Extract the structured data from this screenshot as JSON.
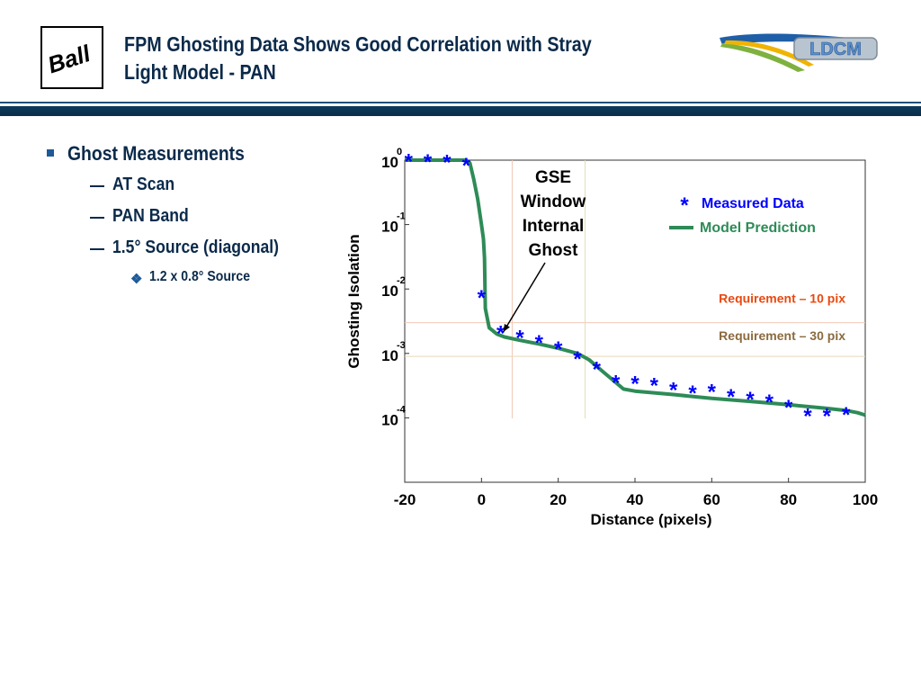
{
  "slide": {
    "title_line1": "FPM Ghosting Data Shows Good Correlation with Stray",
    "title_line2": "Light Model - PAN",
    "left_logo_text": "Ball",
    "right_logo_text": "LDCM",
    "bullets": {
      "l1": "Ghost Measurements",
      "l2": [
        "AT Scan",
        "PAN Band",
        "1.5° Source (diagonal)"
      ],
      "l3": "1.2 x 0.8° Source"
    }
  },
  "colors": {
    "measured": "#0000ff",
    "model": "#2e8b57",
    "req10": "#e8490f",
    "req30": "#8b6a3e",
    "title": "#0b2a4a"
  },
  "chart_data": {
    "type": "line",
    "xlabel": "Distance (pixels)",
    "ylabel": "Ghosting Isolation",
    "xlim": [
      -20,
      100
    ],
    "y_scale": "log",
    "ylim": [
      1e-05,
      1
    ],
    "x_ticks": [
      "-20",
      "0",
      "20",
      "40",
      "60",
      "80",
      "100"
    ],
    "y_ticks": [
      {
        "base": "10",
        "exp": "0",
        "value": 1
      },
      {
        "base": "10",
        "exp": "-1",
        "value": 0.1
      },
      {
        "base": "10",
        "exp": "-2",
        "value": 0.01
      },
      {
        "base": "10",
        "exp": "-3",
        "value": 0.001
      },
      {
        "base": "10",
        "exp": "-4",
        "value": 0.0001
      }
    ],
    "legend": {
      "position": "top-right",
      "measured_label": "Measured Data",
      "model_label": "Model Prediction",
      "measured_marker": "*"
    },
    "series": [
      {
        "name": "Measured Data",
        "kind": "markers",
        "x": [
          -19,
          -14,
          -9,
          -4,
          0,
          5,
          10,
          15,
          20,
          25,
          30,
          35,
          40,
          45,
          50,
          55,
          60,
          65,
          70,
          75,
          80,
          85,
          90,
          95
        ],
        "y": [
          0.98,
          0.97,
          0.96,
          0.85,
          0.0075,
          0.0021,
          0.0018,
          0.0015,
          0.0012,
          0.00085,
          0.00058,
          0.00036,
          0.00035,
          0.00033,
          0.00028,
          0.00025,
          0.00026,
          0.00022,
          0.0002,
          0.00018,
          0.00015,
          0.00011,
          0.00011,
          0.000115
        ]
      },
      {
        "name": "Model Prediction",
        "kind": "line",
        "x": [
          -20,
          -4,
          -3,
          -2,
          -1,
          0,
          0.5,
          0.8,
          1,
          2,
          4,
          6,
          10,
          15,
          20,
          25,
          28,
          32,
          37,
          40,
          50,
          60,
          70,
          80,
          90,
          95,
          98,
          100
        ],
        "y": [
          1,
          1,
          0.9,
          0.5,
          0.25,
          0.1,
          0.06,
          0.03,
          0.005,
          0.0025,
          0.002,
          0.0018,
          0.0016,
          0.0014,
          0.0012,
          0.001,
          0.0008,
          0.0005,
          0.00028,
          0.00026,
          0.00023,
          0.0002,
          0.00018,
          0.00016,
          0.00014,
          0.00013,
          0.00012,
          0.00011
        ]
      }
    ],
    "thresholds": [
      {
        "label": "Requirement – 10 pix",
        "y": 0.003,
        "x": 8
      },
      {
        "label": "Requirement – 30 pix",
        "y": 0.0009,
        "x": 27
      }
    ],
    "annotation": {
      "lines": [
        "GSE",
        "Window",
        "Internal",
        "Ghost"
      ],
      "points_to": {
        "x": 5,
        "y": 0.0019
      }
    }
  }
}
